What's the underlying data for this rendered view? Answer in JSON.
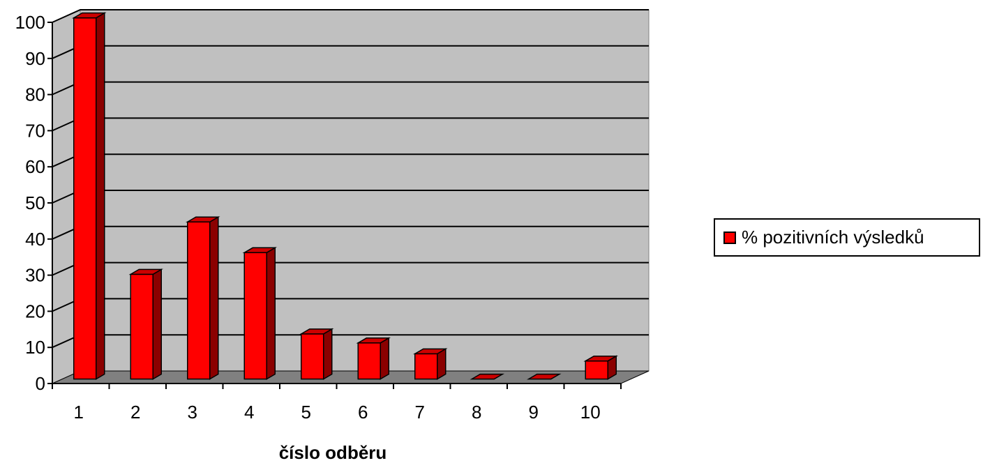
{
  "chart_data": {
    "type": "bar",
    "categories": [
      "1",
      "2",
      "3",
      "4",
      "5",
      "6",
      "7",
      "8",
      "9",
      "10"
    ],
    "series": [
      {
        "name": "% pozitivních výsledků",
        "values": [
          100,
          29,
          43.5,
          35,
          12.5,
          10,
          7,
          0,
          0,
          5
        ]
      }
    ],
    "xlabel": "číslo odběru",
    "ylabel": "",
    "ylim": [
      0,
      100
    ],
    "yticks": [
      0,
      10,
      20,
      30,
      40,
      50,
      60,
      70,
      80,
      90,
      100
    ],
    "grid": true,
    "legend": "right",
    "colors": {
      "bar_front": "#ff0000",
      "bar_side": "#8b0000",
      "bar_top": "#cc0000",
      "plot_wall": "#c0c0c0",
      "plot_floor": "#808080"
    }
  }
}
